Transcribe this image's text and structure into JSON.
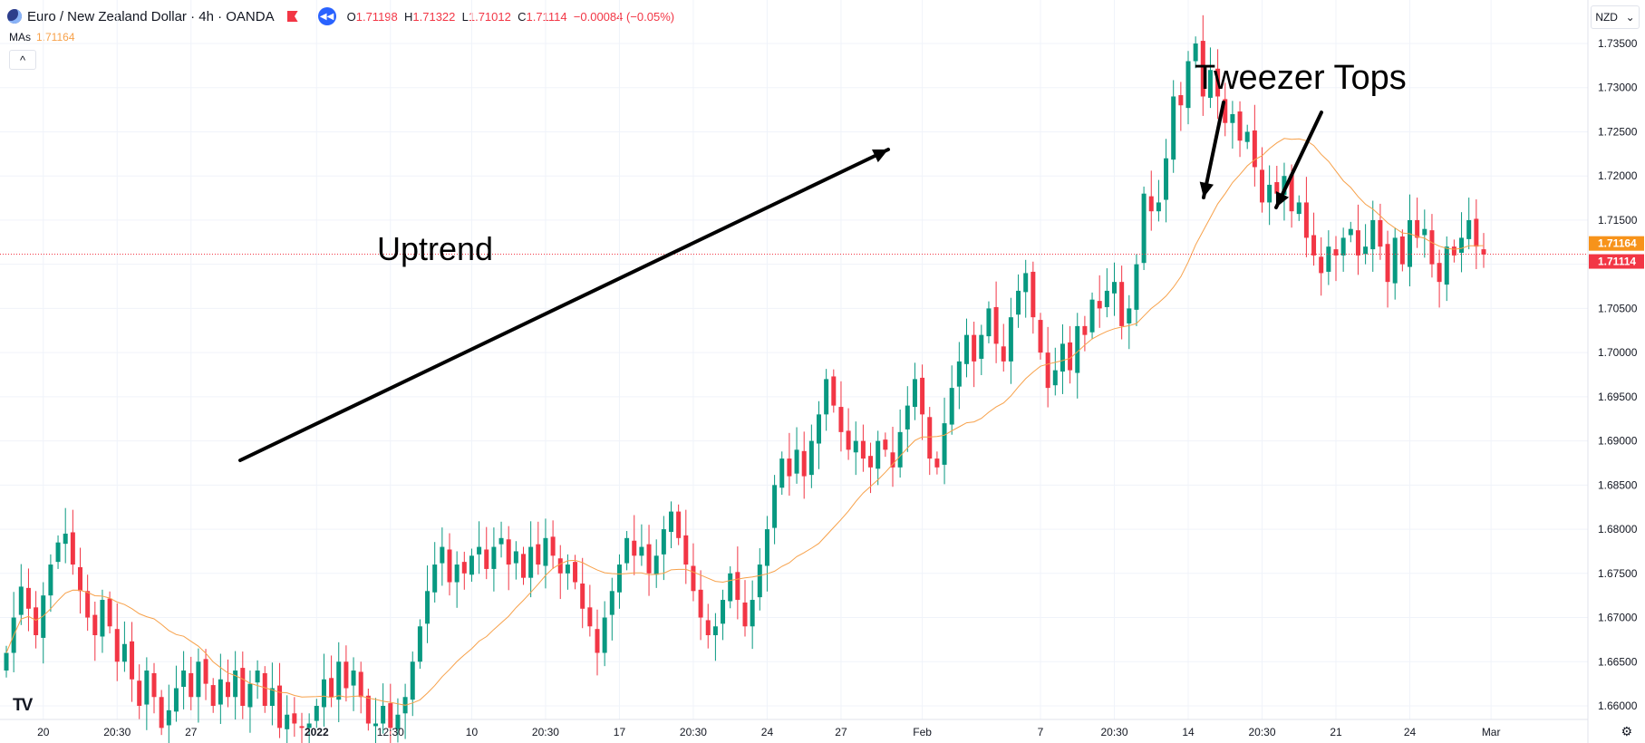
{
  "header": {
    "title": "Euro / New Zealand Dollar · 4h · OANDA",
    "ohlc": [
      {
        "k": "O",
        "v": "1.71198"
      },
      {
        "k": "H",
        "v": "1.71322"
      },
      {
        "k": "L",
        "v": "1.71012"
      },
      {
        "k": "C",
        "v": "1.71114"
      },
      {
        "k": "",
        "v": "−0.00084 (−0.05%)"
      }
    ]
  },
  "indicator": {
    "label": "MAs",
    "value": "1.71164"
  },
  "currency": "NZD",
  "collapse_glyph": "^",
  "logo_text": "TV",
  "settings_glyph": "⚙",
  "chart_data": {
    "type": "candlestick",
    "instrument": "EUR/NZD",
    "timeframe": "4h",
    "ylim": [
      1.6575,
      1.737
    ],
    "y_ticks": [
      "1.73500",
      "1.73000",
      "1.72500",
      "1.72000",
      "1.71500",
      "1.71000",
      "1.70500",
      "1.70000",
      "1.69500",
      "1.69000",
      "1.68500",
      "1.68000",
      "1.67500",
      "1.67000",
      "1.66500",
      "1.66000"
    ],
    "x_ticks": [
      {
        "label": "20",
        "i": 5
      },
      {
        "label": "20:30",
        "i": 15
      },
      {
        "label": "27",
        "i": 25
      },
      {
        "label": "2022",
        "i": 42,
        "bold": true
      },
      {
        "label": "12:30",
        "i": 52
      },
      {
        "label": "10",
        "i": 63
      },
      {
        "label": "20:30",
        "i": 73
      },
      {
        "label": "17",
        "i": 83
      },
      {
        "label": "20:30",
        "i": 93
      },
      {
        "label": "24",
        "i": 103
      },
      {
        "label": "27",
        "i": 113
      },
      {
        "label": "Feb",
        "i": 124
      },
      {
        "label": "7",
        "i": 140
      },
      {
        "label": "20:30",
        "i": 150
      },
      {
        "label": "14",
        "i": 160
      },
      {
        "label": "20:30",
        "i": 170
      },
      {
        "label": "21",
        "i": 180
      },
      {
        "label": "24",
        "i": 190
      },
      {
        "label": "Mar",
        "i": 201
      }
    ],
    "price_labels": [
      {
        "value": 1.71164,
        "text": "1.71164",
        "color": "#f7931a"
      },
      {
        "value": 1.71114,
        "text": "1.71114",
        "color": "#f23645"
      }
    ],
    "current_price_line": 1.71114,
    "moving_average": {
      "color": "#f7a14a"
    },
    "close": [
      1.666,
      1.67,
      1.6735,
      1.671,
      1.668,
      1.6725,
      1.676,
      1.6785,
      1.6795,
      1.676,
      1.673,
      1.67,
      1.668,
      1.672,
      1.669,
      1.665,
      1.667,
      1.663,
      1.66,
      1.664,
      1.661,
      1.6575,
      1.6595,
      1.662,
      1.664,
      1.661,
      1.665,
      1.6625,
      1.66,
      1.663,
      1.661,
      1.664,
      1.66,
      1.6625,
      1.664,
      1.66,
      1.662,
      1.6575,
      1.659,
      1.658,
      1.6575,
      1.658,
      1.66,
      1.663,
      1.661,
      1.665,
      1.662,
      1.664,
      1.661,
      1.658,
      1.658,
      1.66,
      1.6575,
      1.659,
      1.661,
      1.665,
      1.669,
      1.673,
      1.676,
      1.678,
      1.674,
      1.676,
      1.675,
      1.677,
      1.678,
      1.6755,
      1.678,
      1.679,
      1.676,
      1.6775,
      1.6745,
      1.678,
      1.676,
      1.679,
      1.677,
      1.675,
      1.676,
      1.674,
      1.671,
      1.669,
      1.666,
      1.67,
      1.673,
      1.676,
      1.679,
      1.677,
      1.678,
      1.675,
      1.677,
      1.68,
      1.682,
      1.679,
      1.676,
      1.673,
      1.67,
      1.668,
      1.669,
      1.672,
      1.675,
      1.672,
      1.669,
      1.672,
      1.676,
      1.68,
      1.685,
      1.688,
      1.686,
      1.689,
      1.686,
      1.69,
      1.693,
      1.697,
      1.694,
      1.691,
      1.689,
      1.69,
      1.688,
      1.687,
      1.69,
      1.689,
      1.687,
      1.691,
      1.694,
      1.697,
      1.693,
      1.688,
      1.687,
      1.692,
      1.696,
      1.699,
      1.702,
      1.699,
      1.702,
      1.705,
      1.701,
      1.699,
      1.704,
      1.707,
      1.709,
      1.704,
      1.7,
      1.696,
      1.698,
      1.701,
      1.698,
      1.703,
      1.702,
      1.706,
      1.705,
      1.707,
      1.708,
      1.703,
      1.705,
      1.71,
      1.718,
      1.716,
      1.717,
      1.722,
      1.729,
      1.728,
      1.733,
      1.735,
      1.729,
      1.732,
      1.729,
      1.726,
      1.727,
      1.724,
      1.725,
      1.721,
      1.717,
      1.719,
      1.718,
      1.72,
      1.716,
      1.717,
      1.713,
      1.711,
      1.709,
      1.712,
      1.711,
      1.713,
      1.714,
      1.711,
      1.712,
      1.715,
      1.712,
      1.708,
      1.713,
      1.71,
      1.715,
      1.713,
      1.714,
      1.71,
      1.708,
      1.712,
      1.711,
      1.713,
      1.715,
      1.712,
      1.7111
    ],
    "annotations": [
      {
        "type": "text",
        "text": "Uptrend"
      },
      {
        "type": "text",
        "text": "Tweezer Tops"
      }
    ]
  }
}
